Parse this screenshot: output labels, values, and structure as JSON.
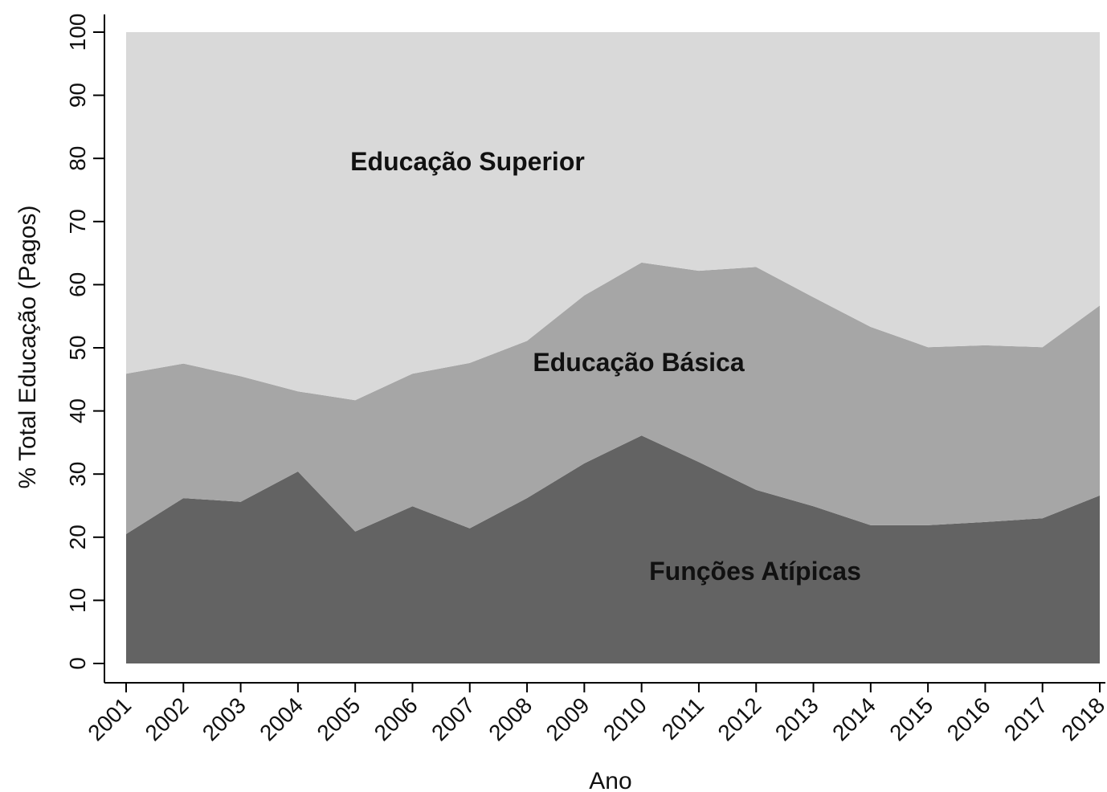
{
  "chart_data": {
    "type": "stacked_area",
    "x": [
      2001,
      2002,
      2003,
      2004,
      2005,
      2006,
      2007,
      2008,
      2009,
      2010,
      2011,
      2012,
      2013,
      2014,
      2015,
      2016,
      2017,
      2018
    ],
    "series": [
      {
        "name": "Funções Atípicas",
        "color": "#636363",
        "values": [
          20.5,
          26.2,
          25.6,
          30.4,
          20.9,
          24.9,
          21.4,
          26.2,
          31.7,
          36.1,
          31.9,
          27.5,
          24.9,
          21.9,
          21.9,
          22.4,
          23.0,
          26.6
        ]
      },
      {
        "name": "Educação Básica",
        "color": "#a6a6a6",
        "values": [
          25.4,
          21.3,
          19.9,
          12.7,
          20.8,
          21.0,
          26.2,
          24.9,
          26.6,
          27.4,
          30.3,
          35.3,
          33.1,
          31.4,
          28.2,
          28.0,
          27.1,
          30.1
        ]
      },
      {
        "name": "Educação Superior",
        "color": "#d9d9d9",
        "values": [
          54.1,
          52.5,
          54.5,
          56.9,
          58.3,
          54.1,
          52.4,
          48.9,
          41.7,
          36.5,
          37.8,
          37.2,
          42.0,
          46.7,
          49.9,
          49.6,
          49.9,
          43.3
        ]
      }
    ],
    "xlabel": "Ano",
    "ylabel": "% Total Educação (Pagos)",
    "xlim": [
      2001,
      2018
    ],
    "xticks": [
      2001,
      2002,
      2003,
      2004,
      2005,
      2006,
      2007,
      2008,
      2009,
      2010,
      2011,
      2012,
      2013,
      2014,
      2015,
      2016,
      2017,
      2018
    ],
    "ylim": [
      0,
      100
    ],
    "yticks": [
      0,
      10,
      20,
      30,
      40,
      50,
      60,
      70,
      80,
      90,
      100
    ]
  }
}
